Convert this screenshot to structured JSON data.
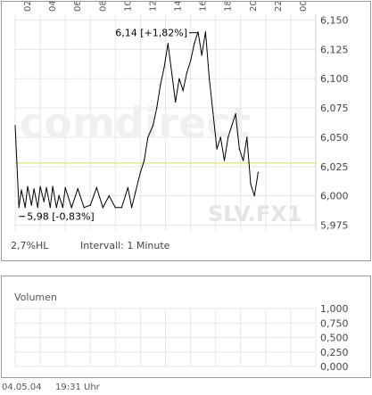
{
  "chart_data": [
    {
      "type": "line",
      "x_tick_labels": [
        "02",
        "04",
        "06",
        "08",
        "10",
        "12",
        "14",
        "16",
        "18",
        "20",
        "22",
        "00"
      ],
      "y_tick_labels": [
        "6,150",
        "6,125",
        "6,100",
        "6,075",
        "6,050",
        "6,025",
        "6,000",
        "5,975"
      ],
      "ylim": [
        5.97,
        6.155
      ],
      "reference_line": 6.028,
      "reference_color": "#e8d060",
      "line_color": "#000000",
      "grid": true,
      "high_label": "6,14 [+1,82%]",
      "low_label": "5,98 [-0,83%]",
      "watermark": "comdirect",
      "symbol_watermark": "SLV.FX1",
      "series": [
        {
          "x": [
            0.0,
            0.3,
            0.5,
            0.8,
            1.0,
            1.3,
            1.5,
            1.8,
            2.0,
            2.3,
            2.5,
            2.8,
            3.0,
            3.3,
            3.5,
            3.8,
            4.0,
            4.5,
            5.0,
            5.5,
            6.0,
            6.5,
            7.0,
            7.5,
            8.0,
            8.5,
            9.0,
            9.3,
            9.6,
            10.0,
            10.3,
            10.6,
            11.0,
            11.3,
            11.6,
            11.9,
            12.2,
            12.5,
            12.8,
            13.1,
            13.4,
            13.7,
            14.0,
            14.3,
            14.6,
            14.9,
            15.2,
            15.5,
            15.8,
            16.1,
            16.4,
            16.7,
            17.0,
            17.3,
            17.6,
            17.9,
            18.2,
            18.5,
            18.8,
            19.1,
            19.4
          ],
          "y": [
            6.06,
            5.99,
            6.005,
            5.99,
            6.008,
            5.992,
            6.006,
            5.99,
            6.008,
            5.995,
            6.007,
            5.99,
            6.008,
            5.99,
            6.0,
            5.99,
            6.007,
            5.99,
            6.006,
            5.99,
            5.992,
            6.007,
            5.99,
            6.0,
            5.99,
            5.99,
            6.007,
            5.99,
            6.003,
            6.02,
            6.03,
            6.05,
            6.06,
            6.075,
            6.095,
            6.11,
            6.13,
            6.105,
            6.08,
            6.1,
            6.09,
            6.105,
            6.115,
            6.13,
            6.14,
            6.12,
            6.14,
            6.1,
            6.07,
            6.04,
            6.05,
            6.03,
            6.05,
            6.06,
            6.07,
            6.04,
            6.03,
            6.05,
            6.01,
            6.0,
            6.02
          ]
        }
      ]
    },
    {
      "type": "bar",
      "title": "Volumen",
      "y_tick_labels": [
        "1,000",
        "0,750",
        "0,500",
        "0,250",
        "0,000"
      ],
      "ylim": [
        0,
        1.0
      ],
      "values": []
    }
  ],
  "info": {
    "range": "2,7%HL",
    "interval": "Intervall: 1 Minute"
  },
  "footer": {
    "date": "04.05.04",
    "time": "19:31 Uhr"
  }
}
